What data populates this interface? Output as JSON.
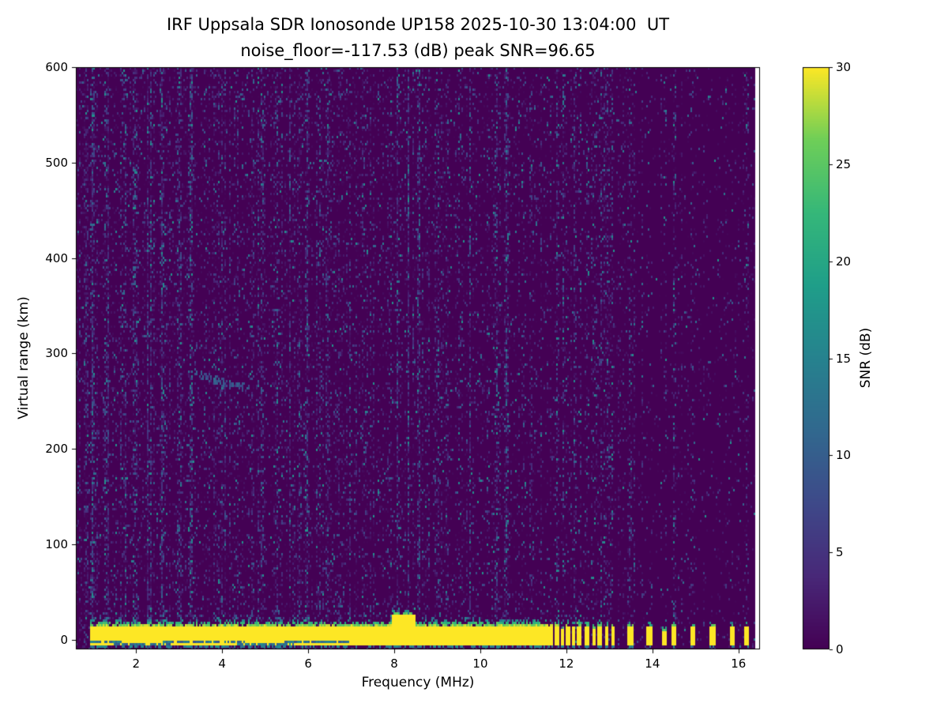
{
  "chart_data": {
    "type": "heatmap",
    "title": "IRF Uppsala SDR Ionosonde UP158 2025-10-30 13:04:00  UT",
    "subtitle": "noise_floor=-117.53 (dB) peak SNR=96.65",
    "station": "IRF Uppsala SDR Ionosonde UP158",
    "timestamp_ut": "2025-10-30 13:04:00",
    "noise_floor_db": -117.53,
    "peak_snr_db": 96.65,
    "xlabel": "Frequency (MHz)",
    "ylabel": "Virtual range (km)",
    "colorbar_label": "SNR (dB)",
    "xlim": [
      0.6,
      16.5
    ],
    "ylim": [
      -10,
      600
    ],
    "xticks": [
      2,
      4,
      6,
      8,
      10,
      12,
      14,
      16
    ],
    "yticks": [
      0,
      100,
      200,
      300,
      400,
      500,
      600
    ],
    "colorbar_ticks": [
      0,
      5,
      10,
      15,
      20,
      25,
      30
    ],
    "value_range_db": [
      0,
      30
    ],
    "colormap": "viridis",
    "data_freq_end_mhz": 16.38,
    "colormap_stops": [
      [
        0.0,
        "#440154"
      ],
      [
        0.125,
        "#482878"
      ],
      [
        0.25,
        "#3e4989"
      ],
      [
        0.375,
        "#31688e"
      ],
      [
        0.5,
        "#26828e"
      ],
      [
        0.625,
        "#1f9e89"
      ],
      [
        0.75,
        "#35b779"
      ],
      [
        0.875,
        "#6ece58"
      ],
      [
        1.0,
        "#fde725"
      ]
    ],
    "features": {
      "ground_band": {
        "freq_start": 0.92,
        "freq_end": 11.68,
        "range_top_km": 15,
        "range_bottom_km": -6,
        "snr_db": 30,
        "fringe_km": 12
      },
      "ground_band_blob": {
        "freq_start": 7.95,
        "freq_end": 8.5,
        "range_top_km": 26,
        "fringe_km": 22
      },
      "echo_trace": {
        "freq_start": 3.35,
        "freq_end": 4.65,
        "range_start_km": 281,
        "range_end_km": 263,
        "snr_db": 9
      },
      "band_dashes": [
        {
          "f": 11.78,
          "h": 15,
          "w": 0.05
        },
        {
          "f": 11.9,
          "h": 12,
          "w": 0.04
        },
        {
          "f": 12.03,
          "h": 15,
          "w": 0.05
        },
        {
          "f": 12.16,
          "h": 13,
          "w": 0.04
        },
        {
          "f": 12.3,
          "h": 15,
          "w": 0.05
        },
        {
          "f": 12.48,
          "h": 14,
          "w": 0.05
        },
        {
          "f": 12.63,
          "h": 12,
          "w": 0.04
        },
        {
          "f": 12.78,
          "h": 15,
          "w": 0.05
        },
        {
          "f": 12.93,
          "h": 13,
          "w": 0.04
        },
        {
          "f": 13.08,
          "h": 14,
          "w": 0.05
        },
        {
          "f": 13.5,
          "h": 14,
          "w": 0.07
        },
        {
          "f": 13.93,
          "h": 13,
          "w": 0.07
        },
        {
          "f": 14.28,
          "h": 9,
          "w": 0.04
        },
        {
          "f": 14.5,
          "h": 15,
          "w": 0.07
        },
        {
          "f": 14.93,
          "h": 13,
          "w": 0.06
        },
        {
          "f": 15.4,
          "h": 14,
          "w": 0.06
        },
        {
          "f": 15.87,
          "h": 13,
          "w": 0.06
        },
        {
          "f": 16.18,
          "h": 14,
          "w": 0.06
        }
      ],
      "noise_columns": [
        {
          "f": 0.98,
          "s": 2.2
        },
        {
          "f": 1.28,
          "s": 1.3
        },
        {
          "f": 1.52,
          "s": 1.0
        },
        {
          "f": 1.75,
          "s": 0.8
        },
        {
          "f": 1.98,
          "s": 1.2
        },
        {
          "f": 2.32,
          "s": 0.9
        },
        {
          "f": 2.62,
          "s": 1.4
        },
        {
          "f": 3.0,
          "s": 0.8
        },
        {
          "f": 3.28,
          "s": 1.6
        },
        {
          "f": 3.62,
          "s": 0.9
        },
        {
          "f": 3.95,
          "s": 0.7
        },
        {
          "f": 4.3,
          "s": 1.0
        },
        {
          "f": 4.62,
          "s": 1.1
        },
        {
          "f": 4.95,
          "s": 0.8
        },
        {
          "f": 5.32,
          "s": 1.2
        },
        {
          "f": 5.62,
          "s": 0.8
        },
        {
          "f": 5.95,
          "s": 0.7
        },
        {
          "f": 6.28,
          "s": 0.9
        },
        {
          "f": 6.6,
          "s": 0.7
        },
        {
          "f": 6.95,
          "s": 0.8
        },
        {
          "f": 7.32,
          "s": 0.9
        },
        {
          "f": 7.62,
          "s": 0.7
        },
        {
          "f": 7.95,
          "s": 0.8
        },
        {
          "f": 8.12,
          "s": 1.9
        },
        {
          "f": 8.32,
          "s": 1.0
        },
        {
          "f": 8.55,
          "s": 0.9
        },
        {
          "f": 9.02,
          "s": 1.0
        },
        {
          "f": 9.28,
          "s": 0.8
        },
        {
          "f": 9.48,
          "s": 1.1
        },
        {
          "f": 9.75,
          "s": 0.7
        },
        {
          "f": 9.95,
          "s": 0.9
        },
        {
          "f": 10.18,
          "s": 0.7
        },
        {
          "f": 10.38,
          "s": 1.0
        },
        {
          "f": 10.62,
          "s": 0.8
        },
        {
          "f": 10.82,
          "s": 0.9
        },
        {
          "f": 11.05,
          "s": 0.8
        },
        {
          "f": 11.3,
          "s": 0.9
        },
        {
          "f": 11.52,
          "s": 1.0
        },
        {
          "f": 11.78,
          "s": 1.1
        },
        {
          "f": 11.9,
          "s": 0.9
        },
        {
          "f": 12.03,
          "s": 1.1
        },
        {
          "f": 12.16,
          "s": 0.9
        },
        {
          "f": 12.3,
          "s": 1.1
        },
        {
          "f": 12.48,
          "s": 1.0
        },
        {
          "f": 12.63,
          "s": 0.9
        },
        {
          "f": 12.78,
          "s": 1.1
        },
        {
          "f": 12.93,
          "s": 0.9
        },
        {
          "f": 13.08,
          "s": 1.0
        },
        {
          "f": 13.5,
          "s": 0.8
        },
        {
          "f": 13.93,
          "s": 0.8
        },
        {
          "f": 14.28,
          "s": 0.6
        },
        {
          "f": 14.5,
          "s": 0.9
        },
        {
          "f": 14.93,
          "s": 0.7
        },
        {
          "f": 15.4,
          "s": 0.7
        },
        {
          "f": 15.87,
          "s": 0.7
        },
        {
          "f": 16.18,
          "s": 0.8
        }
      ]
    }
  }
}
